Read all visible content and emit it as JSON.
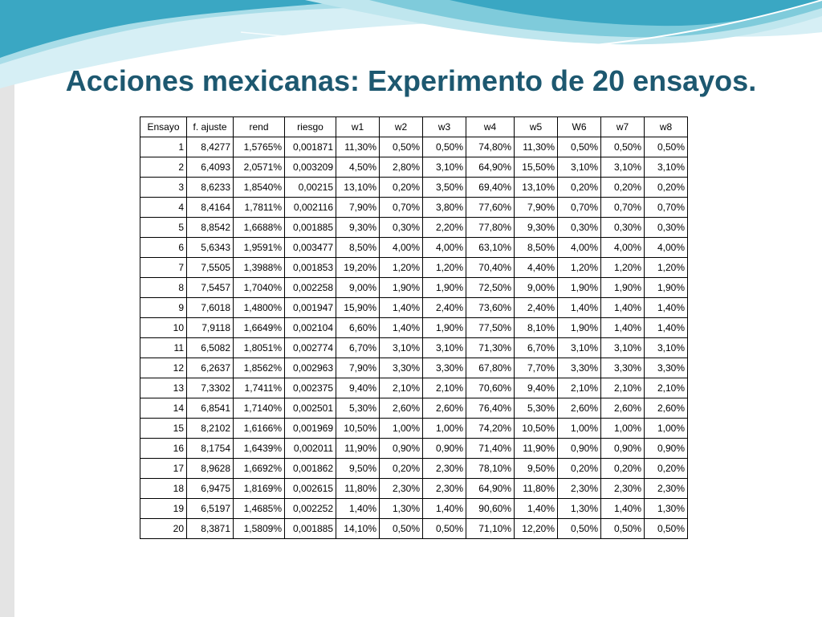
{
  "title": "Acciones mexicanas: Experimento de 20 ensayos.",
  "colors": {
    "title": "#1d5870",
    "wave_dark": "#3aa7c3",
    "wave_light": "#a9dde8",
    "left_border": "#e4e4e4"
  },
  "table": {
    "headers": [
      "Ensayo",
      "f. ajuste",
      "rend",
      "riesgo",
      "w1",
      "w2",
      "w3",
      "w4",
      "w5",
      "W6",
      "w7",
      "w8"
    ],
    "rows": [
      [
        "1",
        "8,4277",
        "1,5765%",
        "0,001871",
        "11,30%",
        "0,50%",
        "0,50%",
        "74,80%",
        "11,30%",
        "0,50%",
        "0,50%",
        "0,50%"
      ],
      [
        "2",
        "6,4093",
        "2,0571%",
        "0,003209",
        "4,50%",
        "2,80%",
        "3,10%",
        "64,90%",
        "15,50%",
        "3,10%",
        "3,10%",
        "3,10%"
      ],
      [
        "3",
        "8,6233",
        "1,8540%",
        "0,00215",
        "13,10%",
        "0,20%",
        "3,50%",
        "69,40%",
        "13,10%",
        "0,20%",
        "0,20%",
        "0,20%"
      ],
      [
        "4",
        "8,4164",
        "1,7811%",
        "0,002116",
        "7,90%",
        "0,70%",
        "3,80%",
        "77,60%",
        "7,90%",
        "0,70%",
        "0,70%",
        "0,70%"
      ],
      [
        "5",
        "8,8542",
        "1,6688%",
        "0,001885",
        "9,30%",
        "0,30%",
        "2,20%",
        "77,80%",
        "9,30%",
        "0,30%",
        "0,30%",
        "0,30%"
      ],
      [
        "6",
        "5,6343",
        "1,9591%",
        "0,003477",
        "8,50%",
        "4,00%",
        "4,00%",
        "63,10%",
        "8,50%",
        "4,00%",
        "4,00%",
        "4,00%"
      ],
      [
        "7",
        "7,5505",
        "1,3988%",
        "0,001853",
        "19,20%",
        "1,20%",
        "1,20%",
        "70,40%",
        "4,40%",
        "1,20%",
        "1,20%",
        "1,20%"
      ],
      [
        "8",
        "7,5457",
        "1,7040%",
        "0,002258",
        "9,00%",
        "1,90%",
        "1,90%",
        "72,50%",
        "9,00%",
        "1,90%",
        "1,90%",
        "1,90%"
      ],
      [
        "9",
        "7,6018",
        "1,4800%",
        "0,001947",
        "15,90%",
        "1,40%",
        "2,40%",
        "73,60%",
        "2,40%",
        "1,40%",
        "1,40%",
        "1,40%"
      ],
      [
        "10",
        "7,9118",
        "1,6649%",
        "0,002104",
        "6,60%",
        "1,40%",
        "1,90%",
        "77,50%",
        "8,10%",
        "1,90%",
        "1,40%",
        "1,40%"
      ],
      [
        "11",
        "6,5082",
        "1,8051%",
        "0,002774",
        "6,70%",
        "3,10%",
        "3,10%",
        "71,30%",
        "6,70%",
        "3,10%",
        "3,10%",
        "3,10%"
      ],
      [
        "12",
        "6,2637",
        "1,8562%",
        "0,002963",
        "7,90%",
        "3,30%",
        "3,30%",
        "67,80%",
        "7,70%",
        "3,30%",
        "3,30%",
        "3,30%"
      ],
      [
        "13",
        "7,3302",
        "1,7411%",
        "0,002375",
        "9,40%",
        "2,10%",
        "2,10%",
        "70,60%",
        "9,40%",
        "2,10%",
        "2,10%",
        "2,10%"
      ],
      [
        "14",
        "6,8541",
        "1,7140%",
        "0,002501",
        "5,30%",
        "2,60%",
        "2,60%",
        "76,40%",
        "5,30%",
        "2,60%",
        "2,60%",
        "2,60%"
      ],
      [
        "15",
        "8,2102",
        "1,6166%",
        "0,001969",
        "10,50%",
        "1,00%",
        "1,00%",
        "74,20%",
        "10,50%",
        "1,00%",
        "1,00%",
        "1,00%"
      ],
      [
        "16",
        "8,1754",
        "1,6439%",
        "0,002011",
        "11,90%",
        "0,90%",
        "0,90%",
        "71,40%",
        "11,90%",
        "0,90%",
        "0,90%",
        "0,90%"
      ],
      [
        "17",
        "8,9628",
        "1,6692%",
        "0,001862",
        "9,50%",
        "0,20%",
        "2,30%",
        "78,10%",
        "9,50%",
        "0,20%",
        "0,20%",
        "0,20%"
      ],
      [
        "18",
        "6,9475",
        "1,8169%",
        "0,002615",
        "11,80%",
        "2,30%",
        "2,30%",
        "64,90%",
        "11,80%",
        "2,30%",
        "2,30%",
        "2,30%"
      ],
      [
        "19",
        "6,5197",
        "1,4685%",
        "0,002252",
        "1,40%",
        "1,30%",
        "1,40%",
        "90,60%",
        "1,40%",
        "1,30%",
        "1,40%",
        "1,30%"
      ],
      [
        "20",
        "8,3871",
        "1,5809%",
        "0,001885",
        "14,10%",
        "0,50%",
        "0,50%",
        "71,10%",
        "12,20%",
        "0,50%",
        "0,50%",
        "0,50%"
      ]
    ]
  }
}
